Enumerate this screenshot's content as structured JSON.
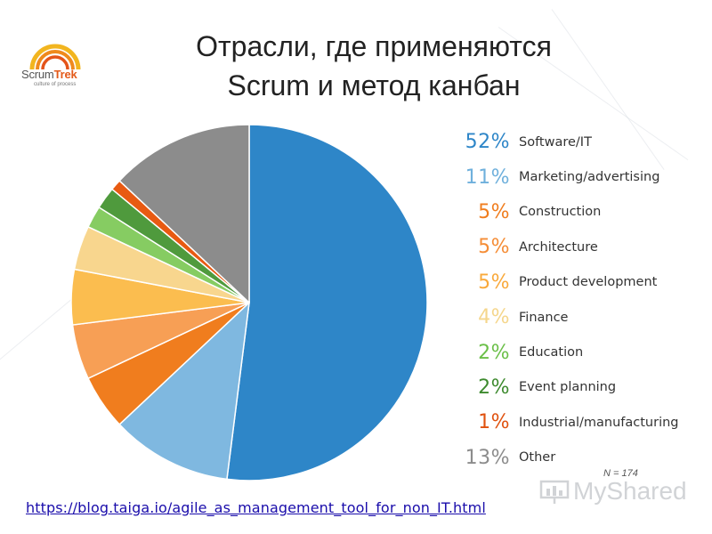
{
  "header": {
    "title_line1": "Отрасли, где применяются",
    "title_line2": "Scrum и метод канбан"
  },
  "logo": {
    "name_part1": "Scrum",
    "name_part2": "Trek",
    "tagline": "culture of process"
  },
  "chart_data": {
    "type": "pie",
    "categories": [
      "Software/IT",
      "Marketing/advertising",
      "Construction",
      "Architecture",
      "Product development",
      "Finance",
      "Education",
      "Event planning",
      "Industrial/manufacturing",
      "Other"
    ],
    "values": [
      52,
      11,
      5,
      5,
      5,
      4,
      2,
      2,
      1,
      13
    ],
    "labels": [
      "52%",
      "11%",
      "5%",
      "5%",
      "5%",
      "4%",
      "2%",
      "2%",
      "1%",
      "13%"
    ],
    "colors": [
      "#2e86c8",
      "#7fb8e0",
      "#f07d1e",
      "#f79f55",
      "#fbbd4f",
      "#f8d68e",
      "#86cc62",
      "#4f9a3d",
      "#e85a12",
      "#8c8c8c"
    ],
    "label_colors": [
      "#2e86c8",
      "#6fb0dc",
      "#f07d1e",
      "#f58d36",
      "#f9a93b",
      "#f5d68c",
      "#6bbf48",
      "#3d8a2e",
      "#e0520f",
      "#8c8c8c"
    ],
    "legend_position": "right",
    "start": "top",
    "direction": "clockwise",
    "note": "N = 174"
  },
  "footer": {
    "source_url": "https://blog.taiga.io/agile_as_management_tool_for_non_IT.html",
    "watermark": "MyShared"
  }
}
